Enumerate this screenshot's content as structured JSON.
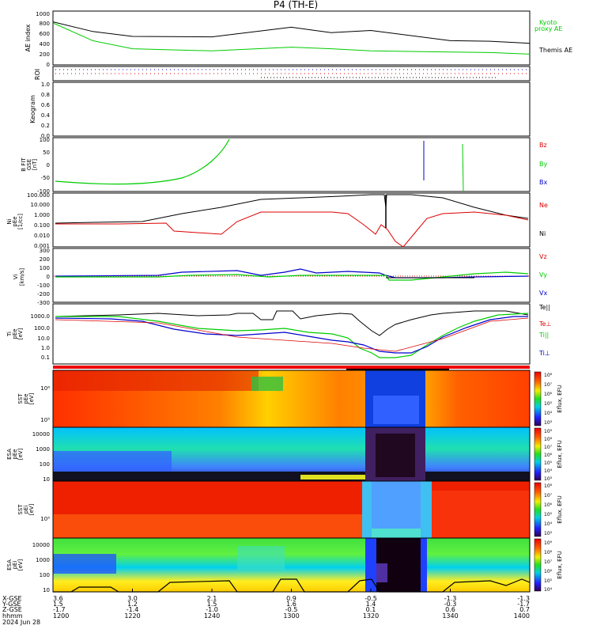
{
  "title": "P4 (TH-E)",
  "colors": {
    "black": "#000000",
    "green": "#00cc00",
    "red": "#dd0000",
    "blue": "#0000cc"
  },
  "panels": {
    "ae": {
      "ylabel": "AE index",
      "ticks": [
        "1000",
        "800",
        "600",
        "400",
        "200",
        "0"
      ],
      "legend_kyoto": "Kyoto",
      "legend_proxy": "proxy AE",
      "legend_themis": "Themis AE"
    },
    "roi": {
      "ylabel": "ROI"
    },
    "keogram": {
      "ylabel": "Keogram",
      "ticks": [
        "1.0",
        "0.8",
        "0.6",
        "0.4",
        "0.2",
        "0.0"
      ]
    },
    "bfit": {
      "ylabel": "B FIT",
      "ylabel2": "GSE",
      "ylabel3": "[nT]",
      "ticks": [
        "100",
        "50",
        "0",
        "-50",
        "-100"
      ],
      "legend": [
        "Bz",
        "By",
        "Bx"
      ]
    },
    "ni": {
      "ylabel": "Ni",
      "ylabel2": "pEe",
      "ylabel3": "[1/cc]",
      "ticks": [
        "100.000",
        "10.000",
        "1.000",
        "0.100",
        "0.010",
        "0.001"
      ],
      "legend": [
        "Ne",
        "Ni"
      ]
    },
    "vi": {
      "ylabel": "Vi",
      "ylabel2": "[km/s]",
      "ticks": [
        "300",
        "200",
        "100",
        "0",
        "-100",
        "-200",
        "-300"
      ],
      "legend": [
        "Vz",
        "Vy",
        "Vx"
      ]
    },
    "ti": {
      "ylabel": "Ti",
      "ylabel2": "pEe",
      "ylabel3": "[eV]",
      "ticks": [
        "1000.0",
        "100.0",
        "10.0",
        "1.0",
        "0.1"
      ],
      "legend": [
        "Te||",
        "Te⊥",
        "Ti||",
        "Ti⊥"
      ]
    },
    "sst_e": {
      "ylabel": "SST",
      "ylabel2": "pEe",
      "ylabel3": "[eV]",
      "ticks": [
        "10⁶",
        "10⁵"
      ],
      "cbar_ticks": [
        "10⁸",
        "10⁷",
        "10⁶",
        "10⁵",
        "10⁴",
        "10³"
      ],
      "cbar_label": "Eflux, EFU"
    },
    "esa_e": {
      "ylabel": "ESA",
      "ylabel2": "pEe",
      "ylabel3": "[eV]",
      "ticks": [
        "10000",
        "1000",
        "100",
        "10"
      ],
      "cbar_ticks": [
        "10⁹",
        "10⁸",
        "10⁷",
        "10⁶",
        "10⁵",
        "10⁴",
        "10³"
      ],
      "cbar_label": "Eflux, EFU"
    },
    "sst_i": {
      "ylabel": "SST",
      "ylabel2": "pEi",
      "ylabel3": "[eV]",
      "ticks": [
        "10⁵"
      ],
      "cbar_ticks": [
        "10⁸",
        "10⁷",
        "10⁶",
        "10⁵",
        "10⁴",
        "10³"
      ],
      "cbar_label": "Eflux, EFU"
    },
    "esa_i": {
      "ylabel": "ESA",
      "ylabel2": "pEi",
      "ylabel3": "[eV]",
      "ticks": [
        "10000",
        "1000",
        "100",
        "10"
      ],
      "cbar_ticks": [
        "10⁹",
        "10⁸",
        "10⁷",
        "10⁶",
        "10⁵",
        "10⁴"
      ],
      "cbar_label": "Eflux, EFU"
    }
  },
  "footer": {
    "row_labels": [
      "X-GSE",
      "Y-GSE",
      "Z-GSE",
      "hhmm",
      "2024 Jun 28"
    ],
    "columns": [
      {
        "x": "3.6",
        "y": "1.5",
        "z": "-1.7",
        "t": "1200"
      },
      {
        "x": "3.0",
        "y": "1.2",
        "z": "-1.4",
        "t": "1220"
      },
      {
        "x": "2.1",
        "y": "1.5",
        "z": "-1.0",
        "t": "1240"
      },
      {
        "x": "0.9",
        "y": "1.6",
        "z": "-0.5",
        "t": "1300"
      },
      {
        "x": "-0.5",
        "y": "1.4",
        "z": "0.1",
        "t": "1320"
      },
      {
        "x": "-1.3",
        "y": "-0.3",
        "z": "0.6",
        "t": "1340"
      },
      {
        "x": "-1.3",
        "y": "-1.7",
        "z": "0.7",
        "t": "1400"
      }
    ]
  },
  "chart_data": {
    "type": "line",
    "title": "P4 (TH-E)",
    "xlabel": "hhmm",
    "x_ticks": [
      "1200",
      "1220",
      "1240",
      "1300",
      "1320",
      "1340",
      "1400"
    ],
    "xlim": [
      "1200",
      "1400"
    ],
    "series": [
      {
        "name": "Themis AE",
        "x": [
          "1200",
          "1210",
          "1220",
          "1240",
          "1300",
          "1310",
          "1320",
          "1340",
          "1350",
          "1400"
        ],
        "values": [
          800,
          620,
          530,
          520,
          700,
          600,
          640,
          450,
          440,
          400
        ]
      },
      {
        "name": "Kyoto proxy AE",
        "x": [
          "1200",
          "1210",
          "1220",
          "1240",
          "1300",
          "1310",
          "1320",
          "1340",
          "1350",
          "1400"
        ],
        "values": [
          780,
          450,
          300,
          260,
          330,
          300,
          260,
          240,
          230,
          200
        ]
      }
    ]
  }
}
